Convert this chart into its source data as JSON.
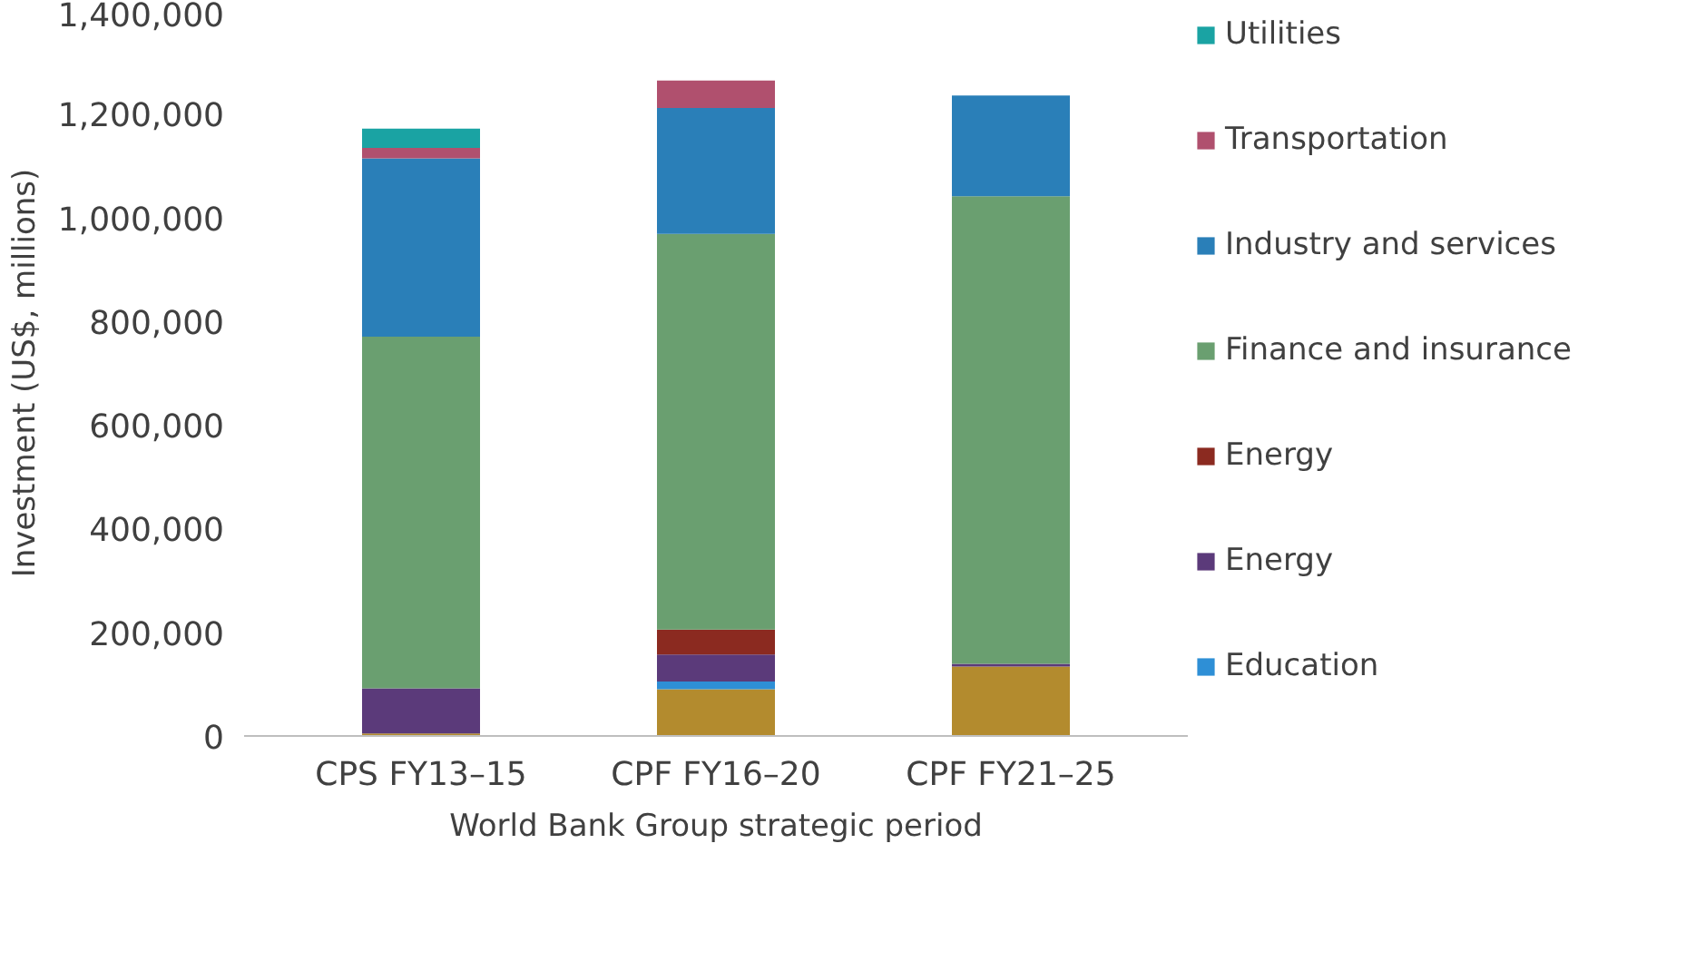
{
  "chart_data": {
    "type": "bar",
    "stacked": true,
    "xlabel": "World Bank Group strategic period",
    "ylabel": "Investment (US$, millions)",
    "categories": [
      "CPS FY13–15",
      "CPF FY16–20",
      "CPF FY21–25"
    ],
    "series": [
      {
        "color": "#b38b2e",
        "values": [
          5000,
          90000,
          134000
        ]
      },
      {
        "name": "Education",
        "color": "#2e8fd6",
        "values": [
          0,
          15000,
          0
        ]
      },
      {
        "name": "Energy",
        "color": "#5b3a7a",
        "values": [
          87000,
          52000,
          5000
        ]
      },
      {
        "name": "Energy",
        "color": "#8b2a20",
        "values": [
          0,
          48000,
          0
        ]
      },
      {
        "name": "Finance and insurance",
        "color": "#6a9f70",
        "values": [
          678000,
          763000,
          902000
        ]
      },
      {
        "name": "Industry and services",
        "color": "#2a7fb8",
        "values": [
          344000,
          243000,
          194000
        ]
      },
      {
        "name": "Transportation",
        "color": "#b0506e",
        "values": [
          20000,
          53000,
          0
        ]
      },
      {
        "name": "Utilities",
        "color": "#1aa3a3",
        "values": [
          37000,
          0,
          0
        ]
      }
    ],
    "ylim": [
      0,
      1400000
    ],
    "yticks": [
      {
        "value": 0,
        "label": "0"
      },
      {
        "value": 200000,
        "label": "200,000"
      },
      {
        "value": 400000,
        "label": "400,000"
      },
      {
        "value": 600000,
        "label": "600,000"
      },
      {
        "value": 800000,
        "label": "800,000"
      },
      {
        "value": 1000000,
        "label": "1,000,000"
      },
      {
        "value": 1200000,
        "label": "1,200,000"
      },
      {
        "value": 1400000,
        "label": "1,400,000"
      }
    ],
    "grid": false,
    "legend": "right"
  }
}
